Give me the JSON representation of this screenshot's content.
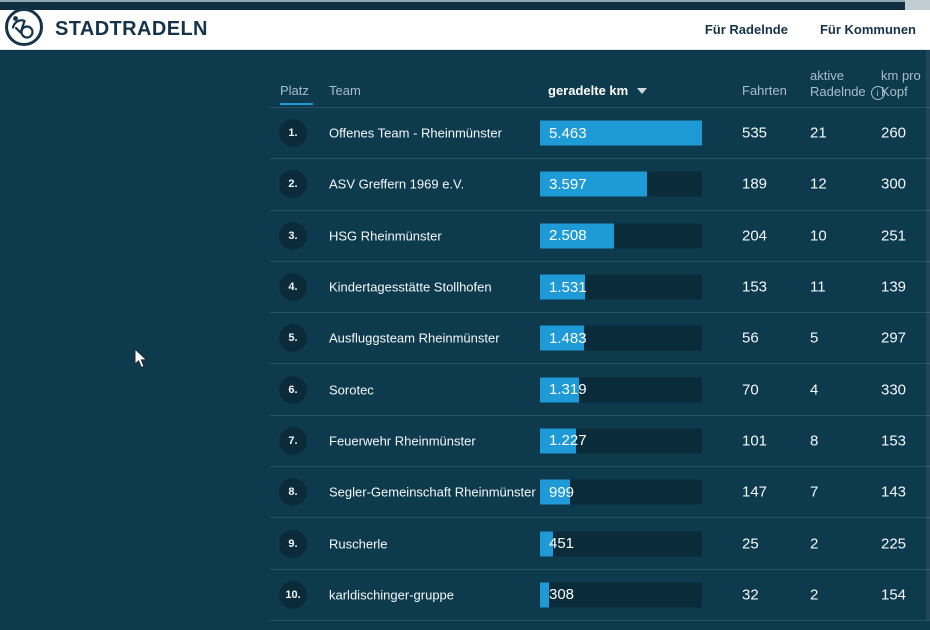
{
  "brand": {
    "name": "STADTRADELN"
  },
  "nav": [
    {
      "label": "Für Radelnde"
    },
    {
      "label": "Für Kommunen"
    }
  ],
  "colors": {
    "accent_blue": "#1e9bd7",
    "background": "#0e3a4d",
    "bar_track": "#0a2b3a",
    "header_navy": "#16334a",
    "rank_circle": "#0c2b3a"
  },
  "table": {
    "columns": {
      "platz": "Platz",
      "team": "Team",
      "km": "geradelte km",
      "fahrten": "Fahrten",
      "aktive_line1": "aktive",
      "aktive_line2": "Radelnde",
      "kmprokopf_line1": "km pro",
      "kmprokopf_line2": "Kopf"
    },
    "sort_column": "geradelte km",
    "sort_direction": "desc",
    "max_km": 5463,
    "rows": [
      {
        "rank": "1.",
        "team": "Offenes Team - Rheinmünster",
        "km": 5463,
        "km_label": "5.463",
        "fahrten": "535",
        "aktive": "21",
        "km_pro_kopf": "260"
      },
      {
        "rank": "2.",
        "team": "ASV Greffern 1969 e.V.",
        "km": 3597,
        "km_label": "3.597",
        "fahrten": "189",
        "aktive": "12",
        "km_pro_kopf": "300"
      },
      {
        "rank": "3.",
        "team": "HSG Rheinmünster",
        "km": 2508,
        "km_label": "2.508",
        "fahrten": "204",
        "aktive": "10",
        "km_pro_kopf": "251"
      },
      {
        "rank": "4.",
        "team": "Kindertagesstätte Stollhofen",
        "km": 1531,
        "km_label": "1.531",
        "fahrten": "153",
        "aktive": "11",
        "km_pro_kopf": "139"
      },
      {
        "rank": "5.",
        "team": "Ausfluggsteam Rheinmünster",
        "km": 1483,
        "km_label": "1.483",
        "fahrten": "56",
        "aktive": "5",
        "km_pro_kopf": "297"
      },
      {
        "rank": "6.",
        "team": "Sorotec",
        "km": 1319,
        "km_label": "1.319",
        "fahrten": "70",
        "aktive": "4",
        "km_pro_kopf": "330"
      },
      {
        "rank": "7.",
        "team": "Feuerwehr Rheinmünster",
        "km": 1227,
        "km_label": "1.227",
        "fahrten": "101",
        "aktive": "8",
        "km_pro_kopf": "153"
      },
      {
        "rank": "8.",
        "team": "Segler-Gemeinschaft Rheinmünster",
        "km": 999,
        "km_label": "999",
        "fahrten": "147",
        "aktive": "7",
        "km_pro_kopf": "143"
      },
      {
        "rank": "9.",
        "team": "Ruscherle",
        "km": 451,
        "km_label": "451",
        "fahrten": "25",
        "aktive": "2",
        "km_pro_kopf": "225"
      },
      {
        "rank": "10.",
        "team": "karldischinger-gruppe",
        "km": 308,
        "km_label": "308",
        "fahrten": "32",
        "aktive": "2",
        "km_pro_kopf": "154"
      }
    ]
  }
}
